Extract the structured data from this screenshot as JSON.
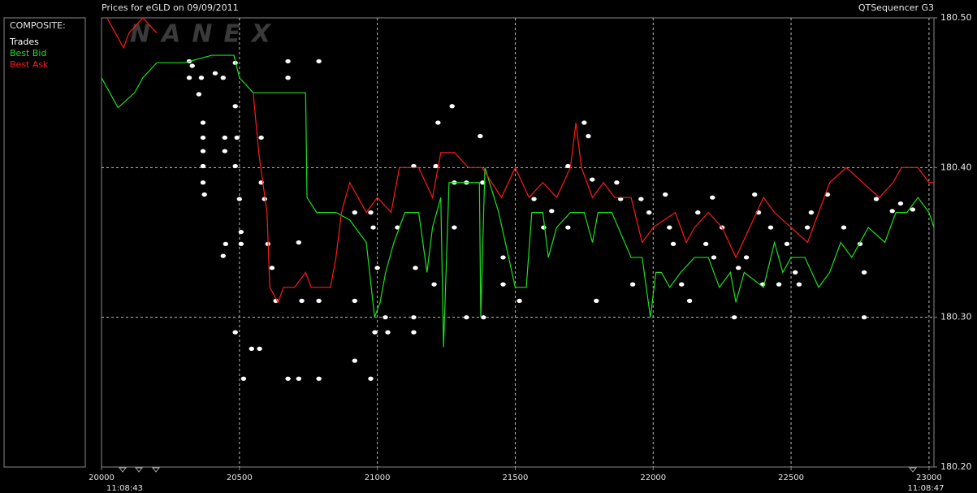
{
  "chart_data": {
    "type": "line",
    "title": "Prices for  eGLD  on  09/09/2011",
    "app_name": "QTSequencer G3",
    "watermark": "NANEX",
    "legend_title": "COMPOSITE:",
    "start_time": "11:08:43",
    "end_time": "11:08:47",
    "xlim": [
      20000,
      23018
    ],
    "ylim": [
      180.2,
      180.5
    ],
    "xticks": [
      20000,
      20500,
      21000,
      21500,
      22000,
      22500,
      23000
    ],
    "yticks": [
      {
        "value": 180.2,
        "label": "180.20"
      },
      {
        "value": 180.3,
        "label": "180.30"
      },
      {
        "value": 180.4,
        "label": "180.40"
      },
      {
        "value": 180.5,
        "label": "180.50"
      }
    ],
    "grid": true,
    "series": [
      {
        "name": "Trades",
        "type": "scatter",
        "color": "#ffffff",
        "x": [
          20318,
          20318,
          20362,
          20329,
          20353,
          20368,
          20368,
          20368,
          20368,
          20368,
          20373,
          20412,
          20441,
          20447,
          20447,
          20450,
          20441,
          20485,
          20485,
          20491,
          20485,
          20500,
          20506,
          20506,
          20485,
          20515,
          20544,
          20573,
          20579,
          20579,
          20591,
          20603,
          20618,
          20632,
          20676,
          20676,
          20676,
          20715,
          20715,
          20726,
          20788,
          20788,
          20788,
          20918,
          20918,
          20918,
          20976,
          20976,
          20985,
          20991,
          21000,
          21029,
          21038,
          21073,
          21132,
          21132,
          21132,
          21138,
          21220,
          21212,
          21206,
          21271,
          21279,
          21279,
          21323,
          21323,
          21373,
          21382,
          21385,
          21456,
          21456,
          21515,
          21568,
          21603,
          21632,
          21691,
          21691,
          21750,
          21765,
          21779,
          21794,
          21868,
          21882,
          21926,
          21956,
          21985,
          22044,
          22059,
          22073,
          22103,
          22132,
          22162,
          22191,
          22215,
          22220,
          22250,
          22294,
          22309,
          22338,
          22368,
          22382,
          22397,
          22426,
          22456,
          22485,
          22515,
          22529,
          22559,
          22573,
          22632,
          22691,
          22750,
          22765,
          22765,
          22809,
          22867,
          22897,
          22941
        ],
        "values": [
          180.471,
          180.46,
          180.46,
          180.468,
          180.449,
          180.43,
          180.42,
          180.411,
          180.401,
          180.39,
          180.382,
          180.463,
          180.46,
          180.42,
          180.411,
          180.349,
          180.341,
          180.47,
          180.441,
          180.42,
          180.401,
          180.379,
          180.357,
          180.349,
          180.29,
          180.259,
          180.279,
          180.279,
          180.42,
          180.39,
          180.379,
          180.349,
          180.333,
          180.311,
          180.471,
          180.46,
          180.259,
          180.259,
          180.35,
          180.311,
          180.471,
          180.311,
          180.259,
          180.37,
          180.311,
          180.271,
          180.37,
          180.259,
          180.36,
          180.29,
          180.333,
          180.3,
          180.29,
          180.36,
          180.401,
          180.3,
          180.29,
          180.333,
          180.43,
          180.401,
          180.322,
          180.441,
          180.39,
          180.36,
          180.39,
          180.3,
          180.421,
          180.39,
          180.3,
          180.34,
          180.322,
          180.311,
          180.379,
          180.36,
          180.371,
          180.401,
          180.36,
          180.43,
          180.421,
          180.392,
          180.311,
          180.39,
          180.379,
          180.322,
          180.379,
          180.37,
          180.382,
          180.36,
          180.349,
          180.322,
          180.311,
          180.37,
          180.349,
          180.38,
          180.34,
          180.36,
          180.3,
          180.333,
          180.34,
          180.382,
          180.37,
          180.322,
          180.36,
          180.322,
          180.349,
          180.33,
          180.322,
          180.36,
          180.37,
          180.382,
          180.36,
          180.349,
          180.33,
          180.3,
          180.379,
          180.371,
          180.376,
          180.372
        ]
      },
      {
        "name": "Best Bid",
        "type": "line",
        "color": "#1ee01e",
        "x": [
          20000,
          20030,
          20060,
          20120,
          20150,
          20200,
          20300,
          20400,
          20480,
          20500,
          20550,
          20740,
          20745,
          20780,
          20850,
          20900,
          20960,
          20990,
          21010,
          21030,
          21060,
          21100,
          21150,
          21180,
          21200,
          21230,
          21240,
          21260,
          21300,
          21370,
          21375,
          21390,
          21440,
          21500,
          21540,
          21560,
          21600,
          21620,
          21650,
          21700,
          21750,
          21780,
          21800,
          21850,
          21920,
          21960,
          21990,
          22010,
          22030,
          22060,
          22100,
          22150,
          22200,
          22240,
          22280,
          22300,
          22330,
          22400,
          22440,
          22470,
          22500,
          22550,
          22600,
          22640,
          22680,
          22720,
          22780,
          22840,
          22880,
          22920,
          22960,
          23000,
          23018
        ],
        "values": [
          180.46,
          180.45,
          180.44,
          180.45,
          180.46,
          180.47,
          180.47,
          180.475,
          180.475,
          180.46,
          180.45,
          180.45,
          180.38,
          180.37,
          180.37,
          180.365,
          180.35,
          180.3,
          180.31,
          180.33,
          180.35,
          180.37,
          180.37,
          180.33,
          180.36,
          180.38,
          180.28,
          180.39,
          180.39,
          180.39,
          180.3,
          180.4,
          180.37,
          180.32,
          180.32,
          180.37,
          180.37,
          180.34,
          180.36,
          180.37,
          180.37,
          180.35,
          180.37,
          180.37,
          180.34,
          180.34,
          180.3,
          180.33,
          180.33,
          180.32,
          180.33,
          180.34,
          180.34,
          180.32,
          180.33,
          180.31,
          180.33,
          180.32,
          180.35,
          180.33,
          180.34,
          180.34,
          180.32,
          180.33,
          180.35,
          180.34,
          180.36,
          180.35,
          180.37,
          180.37,
          180.38,
          180.37,
          180.36
        ]
      },
      {
        "name": "Best Ask",
        "type": "line",
        "color": "#ff1a1a",
        "x": [
          20020,
          20050,
          20080,
          20100,
          20150,
          20200,
          20300,
          20550,
          20570,
          20600,
          20610,
          20640,
          20660,
          20700,
          20740,
          20760,
          20830,
          20850,
          20870,
          20900,
          20930,
          20960,
          21000,
          21050,
          21080,
          21150,
          21200,
          21230,
          21280,
          21330,
          21380,
          21450,
          21500,
          21550,
          21600,
          21650,
          21700,
          21720,
          21740,
          21780,
          21820,
          21860,
          21920,
          21960,
          22000,
          22080,
          22120,
          22150,
          22200,
          22250,
          22300,
          22350,
          22400,
          22440,
          22500,
          22560,
          22600,
          22640,
          22700,
          22760,
          22820,
          22870,
          22900,
          22960,
          23000,
          23018
        ],
        "values": [
          180.5,
          180.49,
          180.48,
          180.49,
          180.5,
          180.49,
          null,
          180.45,
          180.41,
          180.37,
          180.32,
          180.31,
          180.32,
          180.32,
          180.33,
          180.32,
          180.32,
          180.34,
          180.37,
          180.39,
          180.38,
          180.37,
          180.38,
          180.37,
          180.4,
          180.4,
          180.38,
          180.41,
          180.41,
          180.4,
          180.4,
          180.38,
          180.4,
          180.38,
          180.39,
          180.38,
          180.4,
          180.43,
          180.4,
          180.38,
          180.39,
          180.38,
          180.38,
          180.35,
          180.36,
          180.37,
          180.35,
          180.36,
          180.37,
          180.36,
          180.34,
          180.36,
          180.38,
          180.37,
          180.36,
          180.35,
          180.37,
          180.39,
          180.4,
          180.39,
          180.38,
          180.39,
          180.4,
          180.4,
          180.39,
          180.39
        ]
      }
    ]
  }
}
